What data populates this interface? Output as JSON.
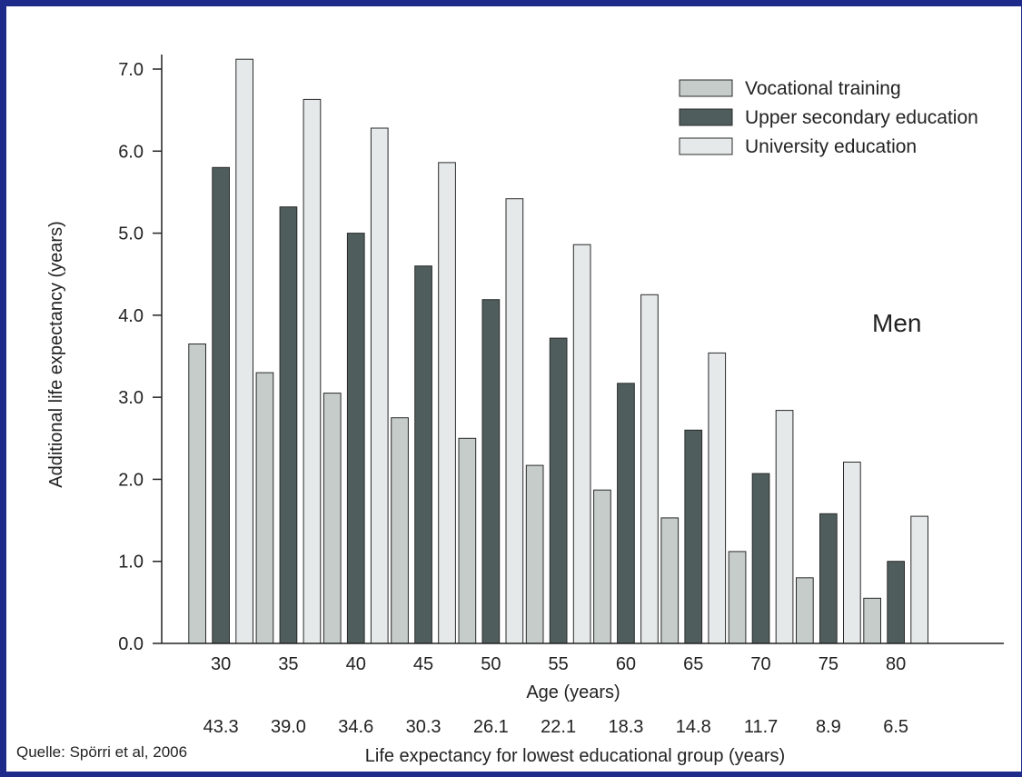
{
  "chart_data": {
    "type": "bar",
    "ylabel": "Additional life expectancy (years)",
    "xlabel": "Age (years)",
    "secondary_xlabel": "Life expectancy for lowest educational group (years)",
    "annotation": "Men",
    "source": "Quelle: Spörri et al, 2006",
    "ylim": [
      0,
      7.0
    ],
    "yticks": [
      "0.0",
      "1.0",
      "2.0",
      "3.0",
      "4.0",
      "5.0",
      "6.0",
      "7.0"
    ],
    "categories": [
      "30",
      "35",
      "40",
      "45",
      "50",
      "55",
      "60",
      "65",
      "70",
      "75",
      "80"
    ],
    "secondary_labels": [
      "43.3",
      "39.0",
      "34.6",
      "30.3",
      "26.1",
      "22.1",
      "18.3",
      "14.8",
      "11.7",
      "8.9",
      "6.5"
    ],
    "legend_position": "top-right",
    "grid": false,
    "series": [
      {
        "name": "Vocational training",
        "color": "#c5ccca",
        "values": [
          3.65,
          3.3,
          3.05,
          2.75,
          2.5,
          2.17,
          1.87,
          1.53,
          1.12,
          0.8,
          0.55
        ]
      },
      {
        "name": "Upper secondary education",
        "color": "#4f5d5c",
        "values": [
          5.8,
          5.32,
          5.0,
          4.6,
          4.19,
          3.72,
          3.17,
          2.6,
          2.07,
          1.58,
          1.0
        ]
      },
      {
        "name": "University education",
        "color": "#e6e9ea",
        "values": [
          7.12,
          6.63,
          6.28,
          5.86,
          5.42,
          4.86,
          4.25,
          3.54,
          2.84,
          2.21,
          1.55
        ]
      }
    ]
  }
}
